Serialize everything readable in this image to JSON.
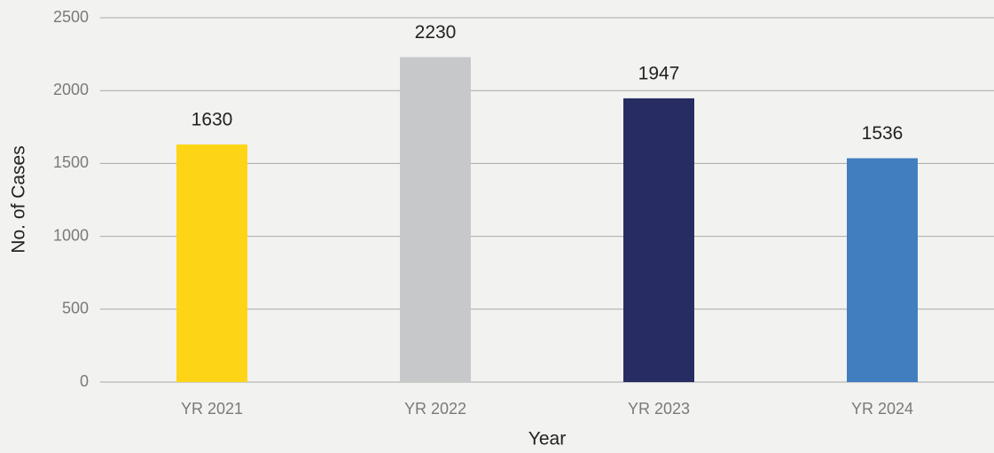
{
  "chart_data": {
    "type": "bar",
    "categories": [
      "YR 2021",
      "YR 2022",
      "YR 2023",
      "YR 2024"
    ],
    "values": [
      1630,
      2230,
      1947,
      1536
    ],
    "colors": [
      "#fdd516",
      "#c7c8ca",
      "#272d62",
      "#417ec0"
    ],
    "xlabel": "Year",
    "ylabel": "No. of Cases",
    "ylim": [
      0,
      2500
    ],
    "yticks": [
      0,
      500,
      1000,
      1500,
      2000,
      2500
    ],
    "grid": true
  }
}
